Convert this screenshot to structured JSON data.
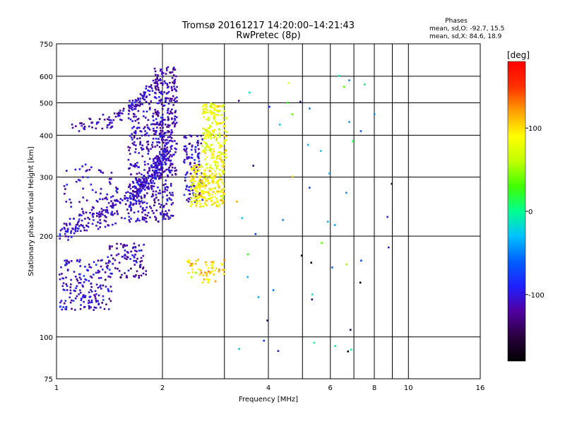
{
  "header": {
    "title": "Tromsø 20161217 14:20:00–14:21:43",
    "subtitle": "RwPretec (8p)",
    "stats_title": "Phases",
    "stats_o": "mean, sd,O: -92.7, 15.5",
    "stats_x": "mean, sd,X:  84.6, 18.9"
  },
  "colorbar": {
    "label": "[deg]",
    "ticks": [
      {
        "value": 100,
        "label": "100"
      },
      {
        "value": 0,
        "label": "0"
      },
      {
        "value": -100,
        "label": "-100"
      }
    ],
    "range": [
      -180,
      180
    ],
    "colors": [
      "#000000",
      "#2a0040",
      "#5000a0",
      "#2020ff",
      "#0060ff",
      "#00c0ff",
      "#00ff90",
      "#40ff00",
      "#c0ff00",
      "#ffff00",
      "#ffa000",
      "#ff3000",
      "#ff0000"
    ]
  },
  "chart_data": {
    "type": "scatter",
    "xlabel": "Frequency [MHz]",
    "ylabel": "Stationary phase Virtual Height [km]",
    "xscale": "log",
    "yscale": "log",
    "xlim": [
      1,
      16
    ],
    "ylim": [
      75,
      750
    ],
    "grid": true,
    "x_ticks": [
      {
        "value": 1,
        "label": "1"
      },
      {
        "value": 2,
        "label": "2"
      },
      {
        "value": 4,
        "label": "4"
      },
      {
        "value": 6,
        "label": "6"
      },
      {
        "value": 8,
        "label": "8"
      },
      {
        "value": 10,
        "label": "10"
      },
      {
        "value": 16,
        "label": "16"
      }
    ],
    "x_minor_gridlines": [
      3,
      5,
      7,
      9
    ],
    "y_ticks": [
      {
        "value": 75,
        "label": "75"
      },
      {
        "value": 100,
        "label": "100"
      },
      {
        "value": 200,
        "label": "200"
      },
      {
        "value": 300,
        "label": "300"
      },
      {
        "value": 400,
        "label": "400"
      },
      {
        "value": 500,
        "label": "500"
      },
      {
        "value": 600,
        "label": "600"
      },
      {
        "value": 750,
        "label": "750"
      }
    ],
    "clusters": [
      {
        "kind": "trace",
        "x": [
          1.02,
          1.3,
          1.6,
          1.85,
          2.05
        ],
        "y": [
          205,
          225,
          255,
          300,
          350
        ],
        "spread": 0.04,
        "n": 320,
        "phase": -105,
        "phase_sd": 12
      },
      {
        "kind": "box",
        "x": [
          1.6,
          2.15
        ],
        "y": [
          220,
          520
        ],
        "n": 420,
        "phase": -108,
        "phase_sd": 12
      },
      {
        "kind": "box",
        "x": [
          1.9,
          2.2
        ],
        "y": [
          300,
          640
        ],
        "n": 220,
        "phase": -110,
        "phase_sd": 12
      },
      {
        "kind": "trace",
        "x": [
          1.1,
          1.4,
          1.7,
          1.95
        ],
        "y": [
          415,
          440,
          500,
          580
        ],
        "spread": 0.025,
        "n": 110,
        "phase": -110,
        "phase_sd": 12
      },
      {
        "kind": "box",
        "x": [
          1.05,
          1.5
        ],
        "y": [
          240,
          330
        ],
        "n": 60,
        "phase": -105,
        "phase_sd": 14
      },
      {
        "kind": "box",
        "x": [
          1.02,
          1.45
        ],
        "y": [
          120,
          170
        ],
        "n": 180,
        "phase": -105,
        "phase_sd": 14
      },
      {
        "kind": "box",
        "x": [
          1.4,
          1.8
        ],
        "y": [
          150,
          190
        ],
        "n": 90,
        "phase": -115,
        "phase_sd": 14
      },
      {
        "kind": "box",
        "x": [
          2.3,
          2.6
        ],
        "y": [
          250,
          400
        ],
        "n": 110,
        "phase": -105,
        "phase_sd": 12
      },
      {
        "kind": "box",
        "x": [
          2.4,
          3.0
        ],
        "y": [
          245,
          330
        ],
        "n": 230,
        "phase": 90,
        "phase_sd": 15
      },
      {
        "kind": "box",
        "x": [
          2.6,
          3.05
        ],
        "y": [
          330,
          500
        ],
        "n": 190,
        "phase": 85,
        "phase_sd": 15
      },
      {
        "kind": "box",
        "x": [
          2.35,
          3.0
        ],
        "y": [
          145,
          170
        ],
        "n": 60,
        "phase": 100,
        "phase_sd": 18
      },
      {
        "kind": "box",
        "x": [
          3.2,
          9.0
        ],
        "y": [
          90,
          620
        ],
        "n": 55,
        "phase": -60,
        "phase_sd": 80
      }
    ]
  }
}
